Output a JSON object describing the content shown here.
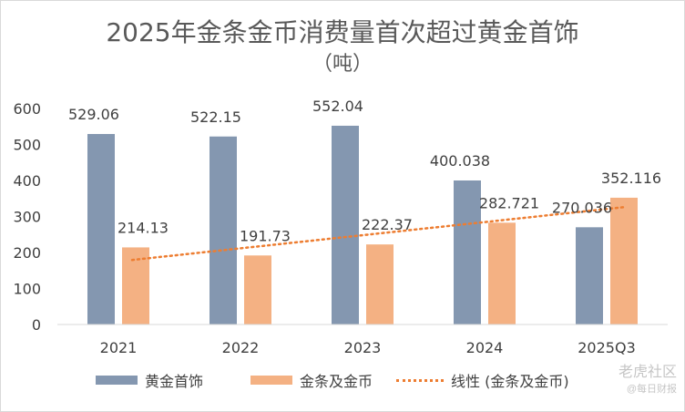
{
  "chart_data": {
    "type": "bar",
    "title": "2025年金条金币消费量首次超过黄金首饰",
    "subtitle": "（吨）",
    "categories": [
      "2021",
      "2022",
      "2023",
      "2024",
      "2025Q3"
    ],
    "series": [
      {
        "name": "黄金首饰",
        "values": [
          529.06,
          522.15,
          552.04,
          400.038,
          270.036
        ],
        "labels": [
          "529.06",
          "522.15",
          "552.04",
          "400.038",
          "270.036"
        ],
        "color": "#8497b0"
      },
      {
        "name": "金条及金币",
        "values": [
          214.13,
          191.73,
          222.37,
          282.721,
          352.116
        ],
        "labels": [
          "214.13",
          "191.73",
          "222.37",
          "282.721",
          "352.116"
        ],
        "color": "#f4b183"
      }
    ],
    "trendline": {
      "name": "线性 (金条及金币)",
      "of_series": "金条及金币",
      "style": "dotted",
      "color": "#ed7d31"
    },
    "yticks": [
      "0",
      "100",
      "200",
      "300",
      "400",
      "500",
      "600"
    ],
    "ylim": [
      0,
      600
    ],
    "grid": false,
    "legend_position": "bottom",
    "xlabel": "",
    "ylabel": ""
  },
  "watermark": {
    "text": "老虎社区",
    "subtext": "@每日财报"
  }
}
